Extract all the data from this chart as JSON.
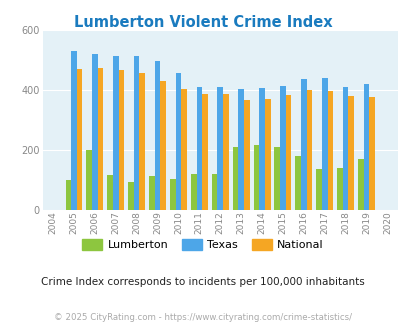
{
  "title": "Lumberton Violent Crime Index",
  "years": [
    2004,
    2005,
    2006,
    2007,
    2008,
    2009,
    2010,
    2011,
    2012,
    2013,
    2014,
    2015,
    2016,
    2017,
    2018,
    2019,
    2020
  ],
  "lumberton": [
    null,
    100,
    197,
    115,
    92,
    113,
    103,
    118,
    118,
    210,
    215,
    210,
    178,
    135,
    137,
    168,
    null
  ],
  "texas": [
    null,
    530,
    518,
    512,
    513,
    495,
    455,
    410,
    410,
    402,
    405,
    412,
    437,
    440,
    410,
    420,
    null
  ],
  "national": [
    null,
    470,
    472,
    465,
    457,
    428,
    403,
    387,
    387,
    365,
    368,
    382,
    399,
    396,
    379,
    376,
    null
  ],
  "color_lumberton": "#8dc63f",
  "color_texas": "#4da6e8",
  "color_national": "#f5a623",
  "bg_color": "#e4f1f7",
  "ylim": [
    0,
    600
  ],
  "yticks": [
    0,
    200,
    400,
    600
  ],
  "legend_labels": [
    "Lumberton",
    "Texas",
    "National"
  ],
  "note": "Crime Index corresponds to incidents per 100,000 inhabitants",
  "copyright": "© 2025 CityRating.com - https://www.cityrating.com/crime-statistics/"
}
